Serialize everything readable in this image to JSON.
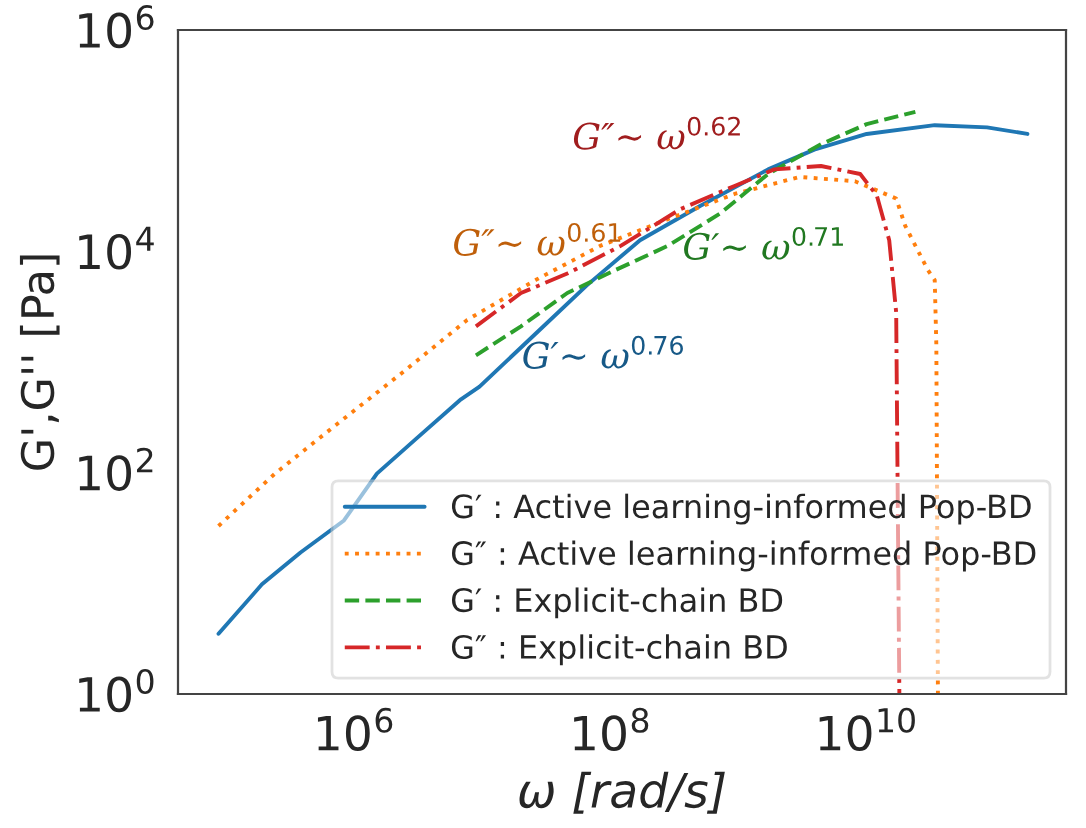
{
  "chart_data": {
    "type": "line",
    "xlabel": "ω [rad/s]",
    "ylabel": "G',G'' [Pa]",
    "log": "xy",
    "grid": false,
    "legend": "bottom right",
    "xlim": [
      42000,
      360000000000
    ],
    "ylim": [
      1,
      1000000
    ],
    "xticks": [
      {
        "value": 1000000,
        "label": "10$^{6}$"
      },
      {
        "value": 100000000,
        "label": "10$^{8}$"
      },
      {
        "value": 10000000000,
        "label": "10$^{10}$"
      }
    ],
    "yticks": [
      {
        "value": 1,
        "label": "10$^{0}$"
      },
      {
        "value": 100,
        "label": "10$^{2}$"
      },
      {
        "value": 10000,
        "label": "10$^{4}$"
      },
      {
        "value": 1000000,
        "label": "10$^{6}$"
      }
    ],
    "series": [
      {
        "name": "G′ : Active learning-informed Pop-BD",
        "color": "#1f77b4",
        "line_style": "solid",
        "x": [
          87000,
          190000,
          380000,
          830000,
          1500000,
          3000000,
          6800000,
          9500000,
          26000000,
          65000000,
          170000000,
          500000000,
          1700000000,
          3900000000,
          10000000000,
          34000000000,
          87000000000,
          180000000000
        ],
        "values": [
          3.5,
          9.8,
          19,
          37,
          98,
          200,
          460,
          600,
          1800,
          4900,
          12600,
          25700,
          55000,
          83000,
          115000,
          138000,
          132000,
          115000
        ]
      },
      {
        "name": "G″ : Active learning-informed Pop-BD",
        "color": "#ff7f0e",
        "line_style": "dotted",
        "x": [
          87000,
          240000,
          690000,
          2300000,
          7600000,
          26000000,
          83000000,
          280000000,
          930000000,
          3000000000,
          8100000000,
          17000000000,
          20000000000,
          30000000000,
          34000000000,
          35000000000,
          36000000000
        ],
        "values": [
          33,
          98,
          260,
          780,
          2400,
          5500,
          11200,
          19500,
          33000,
          47000,
          43000,
          30000,
          17000,
          6800,
          5500,
          1400,
          1
        ]
      },
      {
        "name": "G′ : Explicit-chain BD",
        "color": "#2ca02c",
        "line_style": "dashed",
        "x": [
          8900000,
          20000000,
          46000000,
          110000000,
          280000000,
          720000000,
          1700000000,
          4400000000,
          10000000000,
          24000000000
        ],
        "values": [
          1150,
          2100,
          4200,
          6800,
          11200,
          22000,
          50000,
          93000,
          141000,
          182000
        ]
      },
      {
        "name": "G″ : Explicit-chain BD",
        "color": "#d62728",
        "line_style": "dashdot",
        "x": [
          8900000,
          20000000,
          46000000,
          120000000,
          350000000,
          930000000,
          1900000000,
          4400000000,
          8900000000,
          12000000000,
          15000000000,
          17000000000,
          18000000000
        ],
        "values": [
          2100,
          4200,
          6300,
          11200,
          24000,
          39000,
          55000,
          59000,
          50000,
          32000,
          12600,
          2800,
          1
        ]
      }
    ],
    "annotations": [
      "G′∼ ω$^{0.76}$",
      "G″∼ ω$^{0.61}$",
      "G′∼ ω$^{0.71}$",
      "G″∼ ω$^{0.62}$"
    ]
  }
}
